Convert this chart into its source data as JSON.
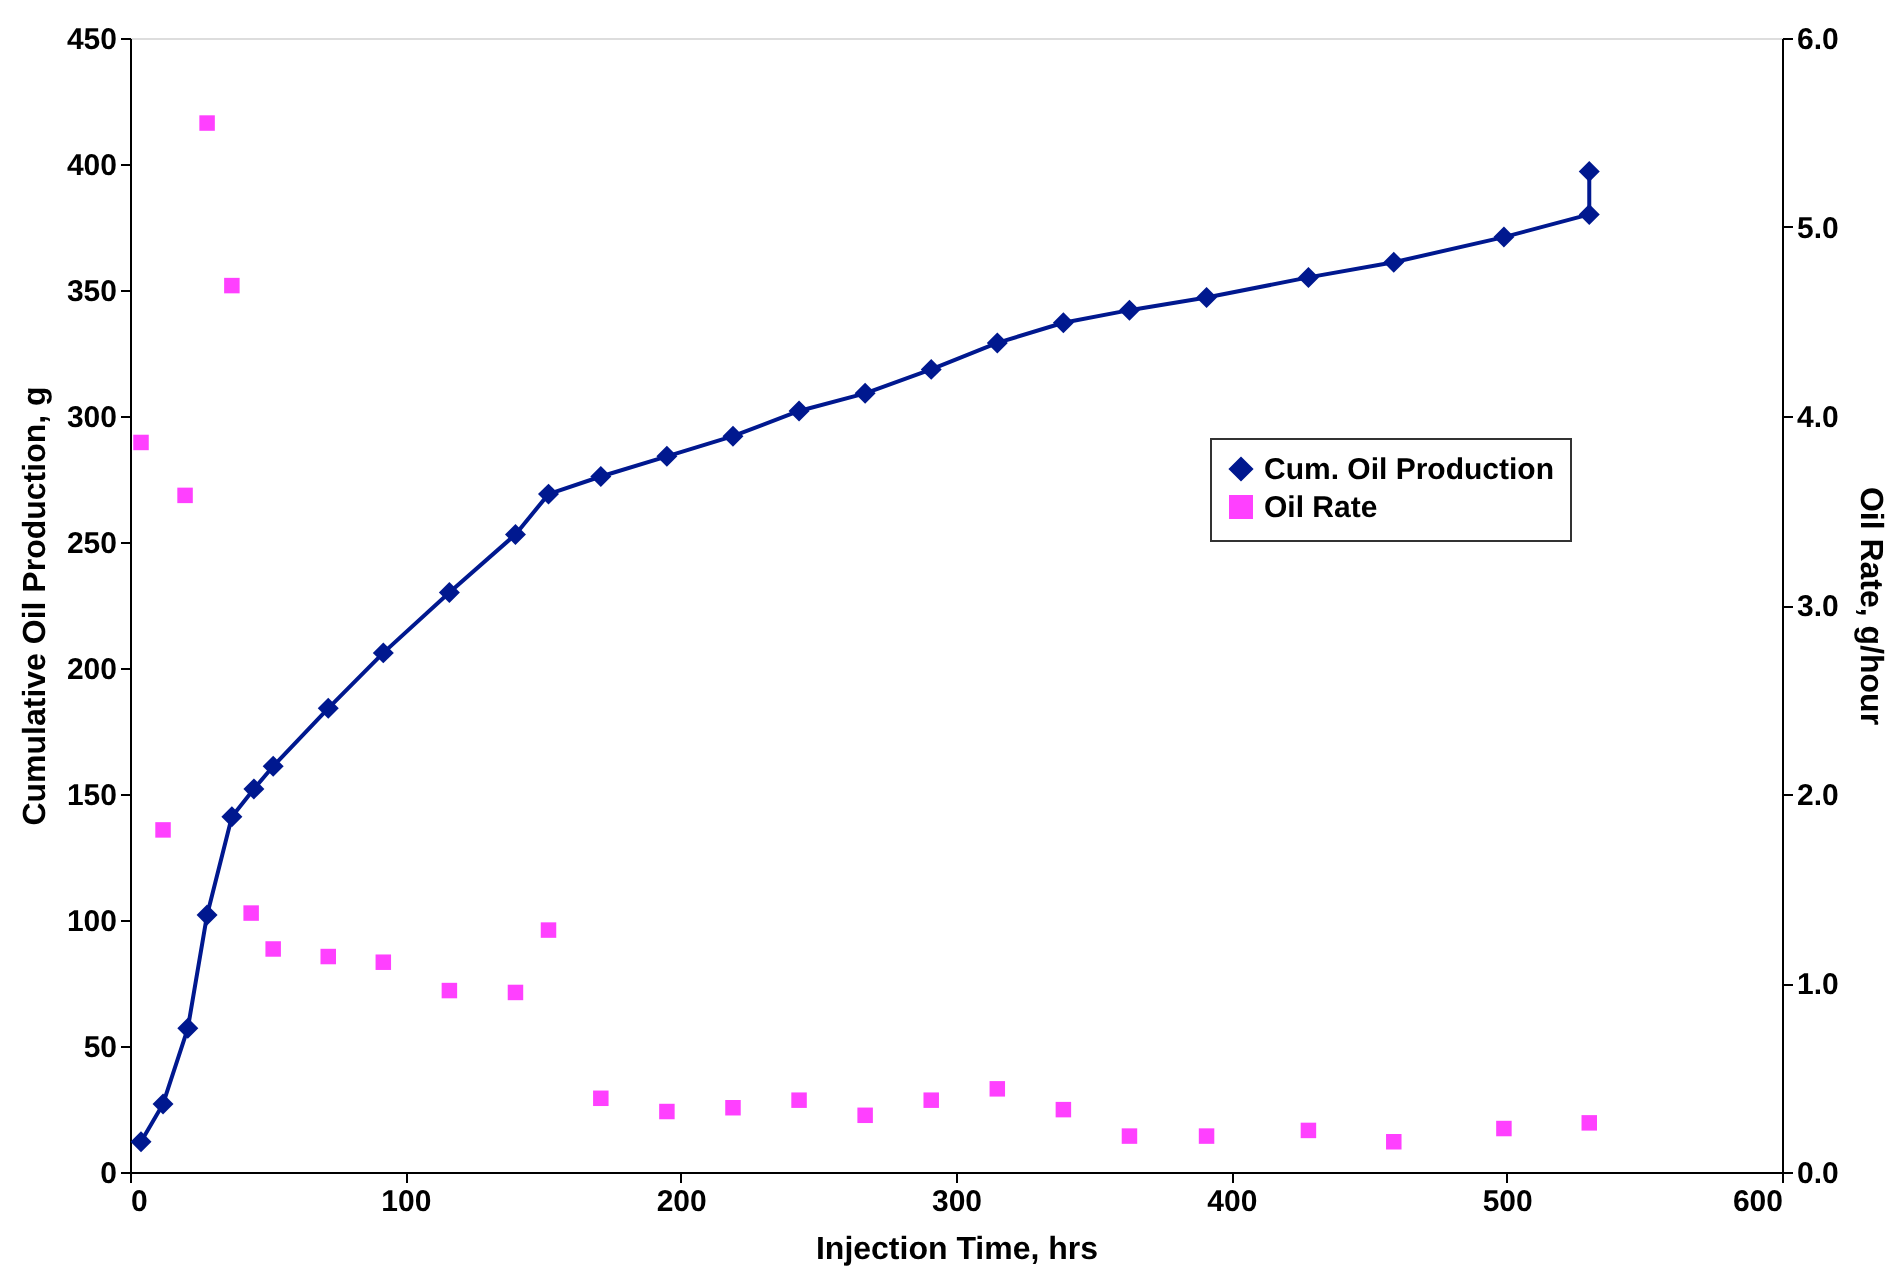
{
  "chart_data": {
    "type": "line",
    "xlabel": "Injection Time, hrs",
    "ylabel": "Cumulative Oil Production, g",
    "y2label": "Oil Rate, g/hour",
    "xlim": [
      0,
      600
    ],
    "xticks": [
      0,
      100,
      200,
      300,
      400,
      500,
      600
    ],
    "ylim": [
      0,
      450
    ],
    "yticks": [
      0,
      50,
      100,
      150,
      200,
      250,
      300,
      350,
      400,
      450
    ],
    "y2lim": [
      0,
      6
    ],
    "y2ticks": [
      {
        "value": 0,
        "label": "0.0"
      },
      {
        "value": 1,
        "label": "1.0"
      },
      {
        "value": 2,
        "label": "2.0"
      },
      {
        "value": 3,
        "label": "3.0"
      },
      {
        "value": 4,
        "label": "4.0"
      },
      {
        "value": 5,
        "label": "5.0"
      },
      {
        "value": 6,
        "label": "6.0"
      }
    ],
    "grid": false,
    "legend": "right",
    "series": [
      {
        "name": "Cum. Oil Production",
        "color": "#00188f",
        "marker": "diamond",
        "line_style": "solid",
        "x": [
          4,
          12,
          21,
          28,
          37,
          45,
          52,
          72,
          92,
          116,
          140,
          152,
          171,
          195,
          219,
          243,
          267,
          291,
          315,
          339,
          363,
          391,
          428,
          459,
          499,
          530,
          530
        ],
        "values": [
          12,
          27,
          57,
          102,
          141,
          152,
          161,
          184,
          206,
          230,
          253,
          269,
          276,
          284,
          292,
          302,
          309,
          318.5,
          329,
          337,
          342,
          347,
          355,
          361,
          371,
          380,
          397
        ]
      },
      {
        "name": "Oil Rate",
        "type": "scatter",
        "axis": "y2",
        "color": "#ff40ff",
        "marker": "square",
        "x": [
          4,
          12,
          20,
          28,
          37,
          44,
          52,
          72,
          92,
          116,
          140,
          152,
          171,
          195,
          219,
          243,
          267,
          291,
          315,
          339,
          363,
          391,
          428,
          459,
          499,
          530
        ],
        "values": [
          3.86,
          1.81,
          3.58,
          5.55,
          4.69,
          1.37,
          1.18,
          1.14,
          1.11,
          0.96,
          0.95,
          1.28,
          0.39,
          0.32,
          0.34,
          0.38,
          0.3,
          0.38,
          0.44,
          0.33,
          0.19,
          0.19,
          0.22,
          0.16,
          0.23,
          0.26
        ]
      }
    ]
  }
}
